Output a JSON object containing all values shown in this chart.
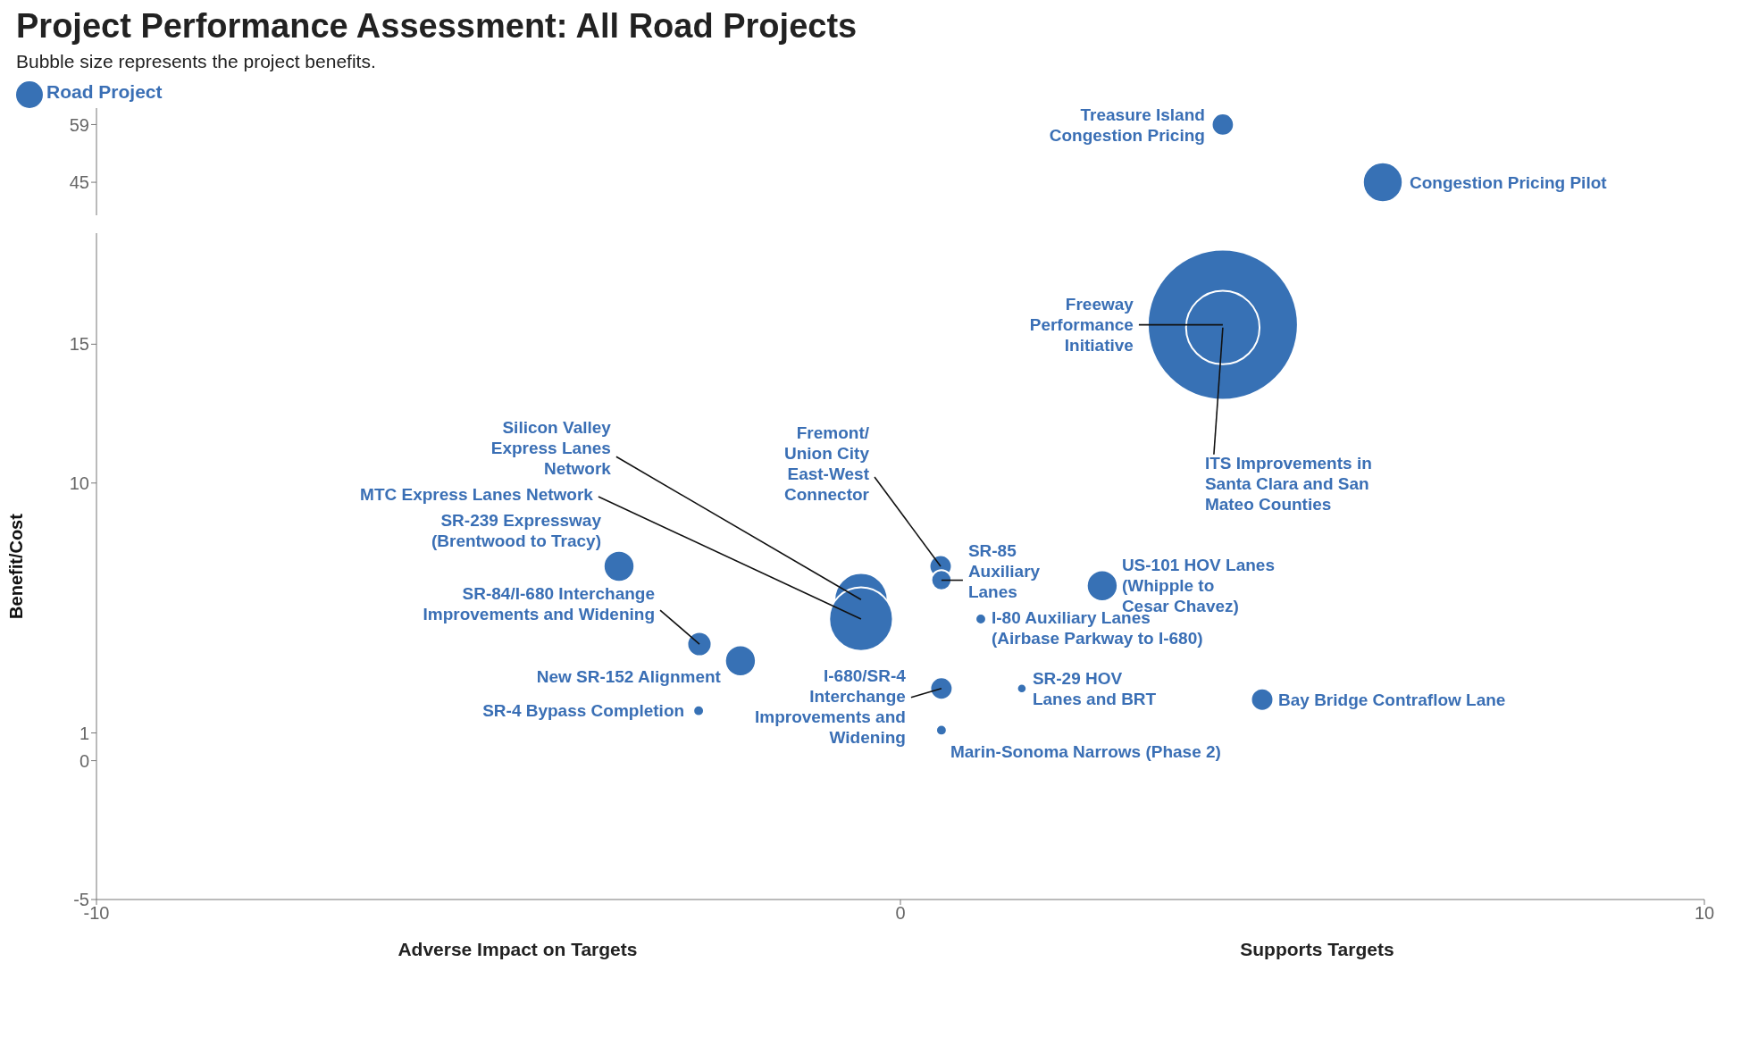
{
  "chart_data": [
    {
      "type": "bubble",
      "title": "Project Performance Assessment: All Road Projects",
      "subtitle": "Bubble size represents the project benefits.",
      "x": [
        4.01,
        6.0
      ],
      "series": [
        {
          "name": "Road Project",
          "color": "#3771b5",
          "values": [
            59,
            45
          ],
          "sizes": [
            0.31,
            1
          ]
        }
      ],
      "xlim": [
        -10,
        10
      ],
      "xticks": [
        -10,
        0,
        10
      ],
      "ylim": [
        37,
        63
      ],
      "yticks": [
        45,
        59
      ],
      "tick_labels": "y",
      "legend": "top left",
      "annotations": [
        {
          "text": "Treasure Island Congestion Pricing",
          "x": 4.01,
          "y": 59
        },
        {
          "text": "Congestion Pricing Pilot",
          "x": 6.0,
          "y": 45
        }
      ]
    },
    {
      "type": "bubble",
      "ylabel": "Benefit/Cost",
      "x": [
        4.01,
        4.01,
        -0.49,
        -0.49,
        -3.5,
        -2.5,
        -1.99,
        -2.51,
        0.5,
        0.51,
        2.51,
        1.0,
        0.51,
        1.51,
        4.5,
        0.51
      ],
      "series": [
        {
          "color": "#3771b5",
          "values": [
            15.7,
            15.6,
            5.8,
            5.1,
            7.0,
            4.2,
            3.6,
            1.8,
            7.0,
            6.5,
            6.3,
            5.1,
            2.6,
            2.6,
            2.2,
            1.1
          ],
          "sizes": [
            1,
            0.24,
            0.125,
            0.18,
            0.042,
            0.026,
            0.042,
            0.005,
            0.022,
            0.018,
            0.042,
            0.005,
            0.022,
            0.004,
            0.022,
            0.005
          ]
        }
      ],
      "xlim": [
        -10,
        10
      ],
      "xticks": [
        -10,
        0,
        10
      ],
      "ylim": [
        -5,
        19
      ],
      "yticks": [
        -5,
        0,
        1,
        10,
        15
      ],
      "annotations": [
        {
          "text": "Freeway Performance Initiative",
          "x": 4.01,
          "y": 15.7
        },
        {
          "text": "ITS Improvements in Santa Clara and San Mateo Counties",
          "x": 4.01,
          "y": 15.6
        },
        {
          "text": "Silicon Valley Express Lanes Network",
          "x": -0.49,
          "y": 5.8
        },
        {
          "text": "MTC Express Lanes Network",
          "x": -0.49,
          "y": 5.1
        },
        {
          "text": "SR-239 Expressway (Brentwood to Tracy)",
          "x": -3.5,
          "y": 7.0
        },
        {
          "text": "SR-84/I-680 Interchange Improvements and Widening",
          "x": -2.5,
          "y": 4.2
        },
        {
          "text": "New SR-152 Alignment",
          "x": -1.99,
          "y": 3.6
        },
        {
          "text": "SR-4 Bypass Completion",
          "x": -2.51,
          "y": 1.8
        },
        {
          "text": "Fremont/ Union City East-West Connector",
          "x": 0.5,
          "y": 7.0
        },
        {
          "text": "SR-85 Auxiliary Lanes",
          "x": 0.51,
          "y": 6.5
        },
        {
          "text": "US-101 HOV Lanes (Whipple to Cesar Chavez)",
          "x": 2.51,
          "y": 6.3
        },
        {
          "text": "I-80 Auxiliary Lanes (Airbase Parkway to I-680)",
          "x": 1.0,
          "y": 5.1
        },
        {
          "text": "I-680/SR-4 Interchange Improvements and Widening",
          "x": 0.51,
          "y": 2.6
        },
        {
          "text": "SR-29 HOV Lanes and BRT",
          "x": 1.51,
          "y": 2.6
        },
        {
          "text": "Bay Bridge Contraflow Lane",
          "x": 4.5,
          "y": 2.2
        },
        {
          "text": "Marin-Sonoma Narrows (Phase 2)",
          "x": 0.51,
          "y": 1.1
        },
        "Adverse Impact on Targets",
        "Supports Targets"
      ]
    }
  ]
}
